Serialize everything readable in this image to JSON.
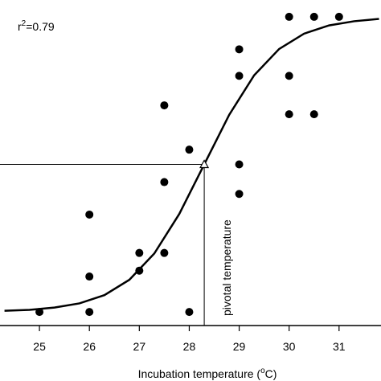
{
  "chart_data": {
    "type": "scatter",
    "x": [
      25,
      26,
      26,
      26,
      27,
      27,
      27.5,
      27.5,
      27.5,
      28,
      28,
      29,
      29,
      29,
      29,
      30,
      30,
      30,
      30.5,
      30.5,
      31
    ],
    "values": [
      0,
      0,
      0.12,
      0.33,
      0.14,
      0.2,
      0.2,
      0.44,
      0.7,
      0,
      0.55,
      0.4,
      0.5,
      0.8,
      0.89,
      0.67,
      0.8,
      1,
      0.67,
      1,
      1
    ],
    "color": "#000000",
    "curve": {
      "x": [
        24.3,
        24.8,
        25.3,
        25.8,
        26.3,
        26.8,
        27.3,
        27.8,
        28.3,
        28.8,
        29.3,
        29.8,
        30.3,
        30.8,
        31.3,
        31.8
      ],
      "values": [
        0.004,
        0.007,
        0.015,
        0.029,
        0.057,
        0.109,
        0.198,
        0.332,
        0.5,
        0.668,
        0.802,
        0.891,
        0.943,
        0.971,
        0.985,
        0.993
      ]
    },
    "pivot": {
      "x": 28.3,
      "y": 0.5
    },
    "pivot_label": "pivotal temperature",
    "r2_label": {
      "base": "r",
      "sup": "2",
      "rest": "=0.79"
    },
    "xlabel": {
      "base": "Incubation temperature (",
      "sup": "o",
      "rest": "C)"
    },
    "xlim": [
      24.21,
      31.84
    ],
    "ylim": [
      -0.046,
      1.057
    ],
    "xticks": [
      25,
      26,
      27,
      28,
      29,
      30,
      31
    ]
  }
}
